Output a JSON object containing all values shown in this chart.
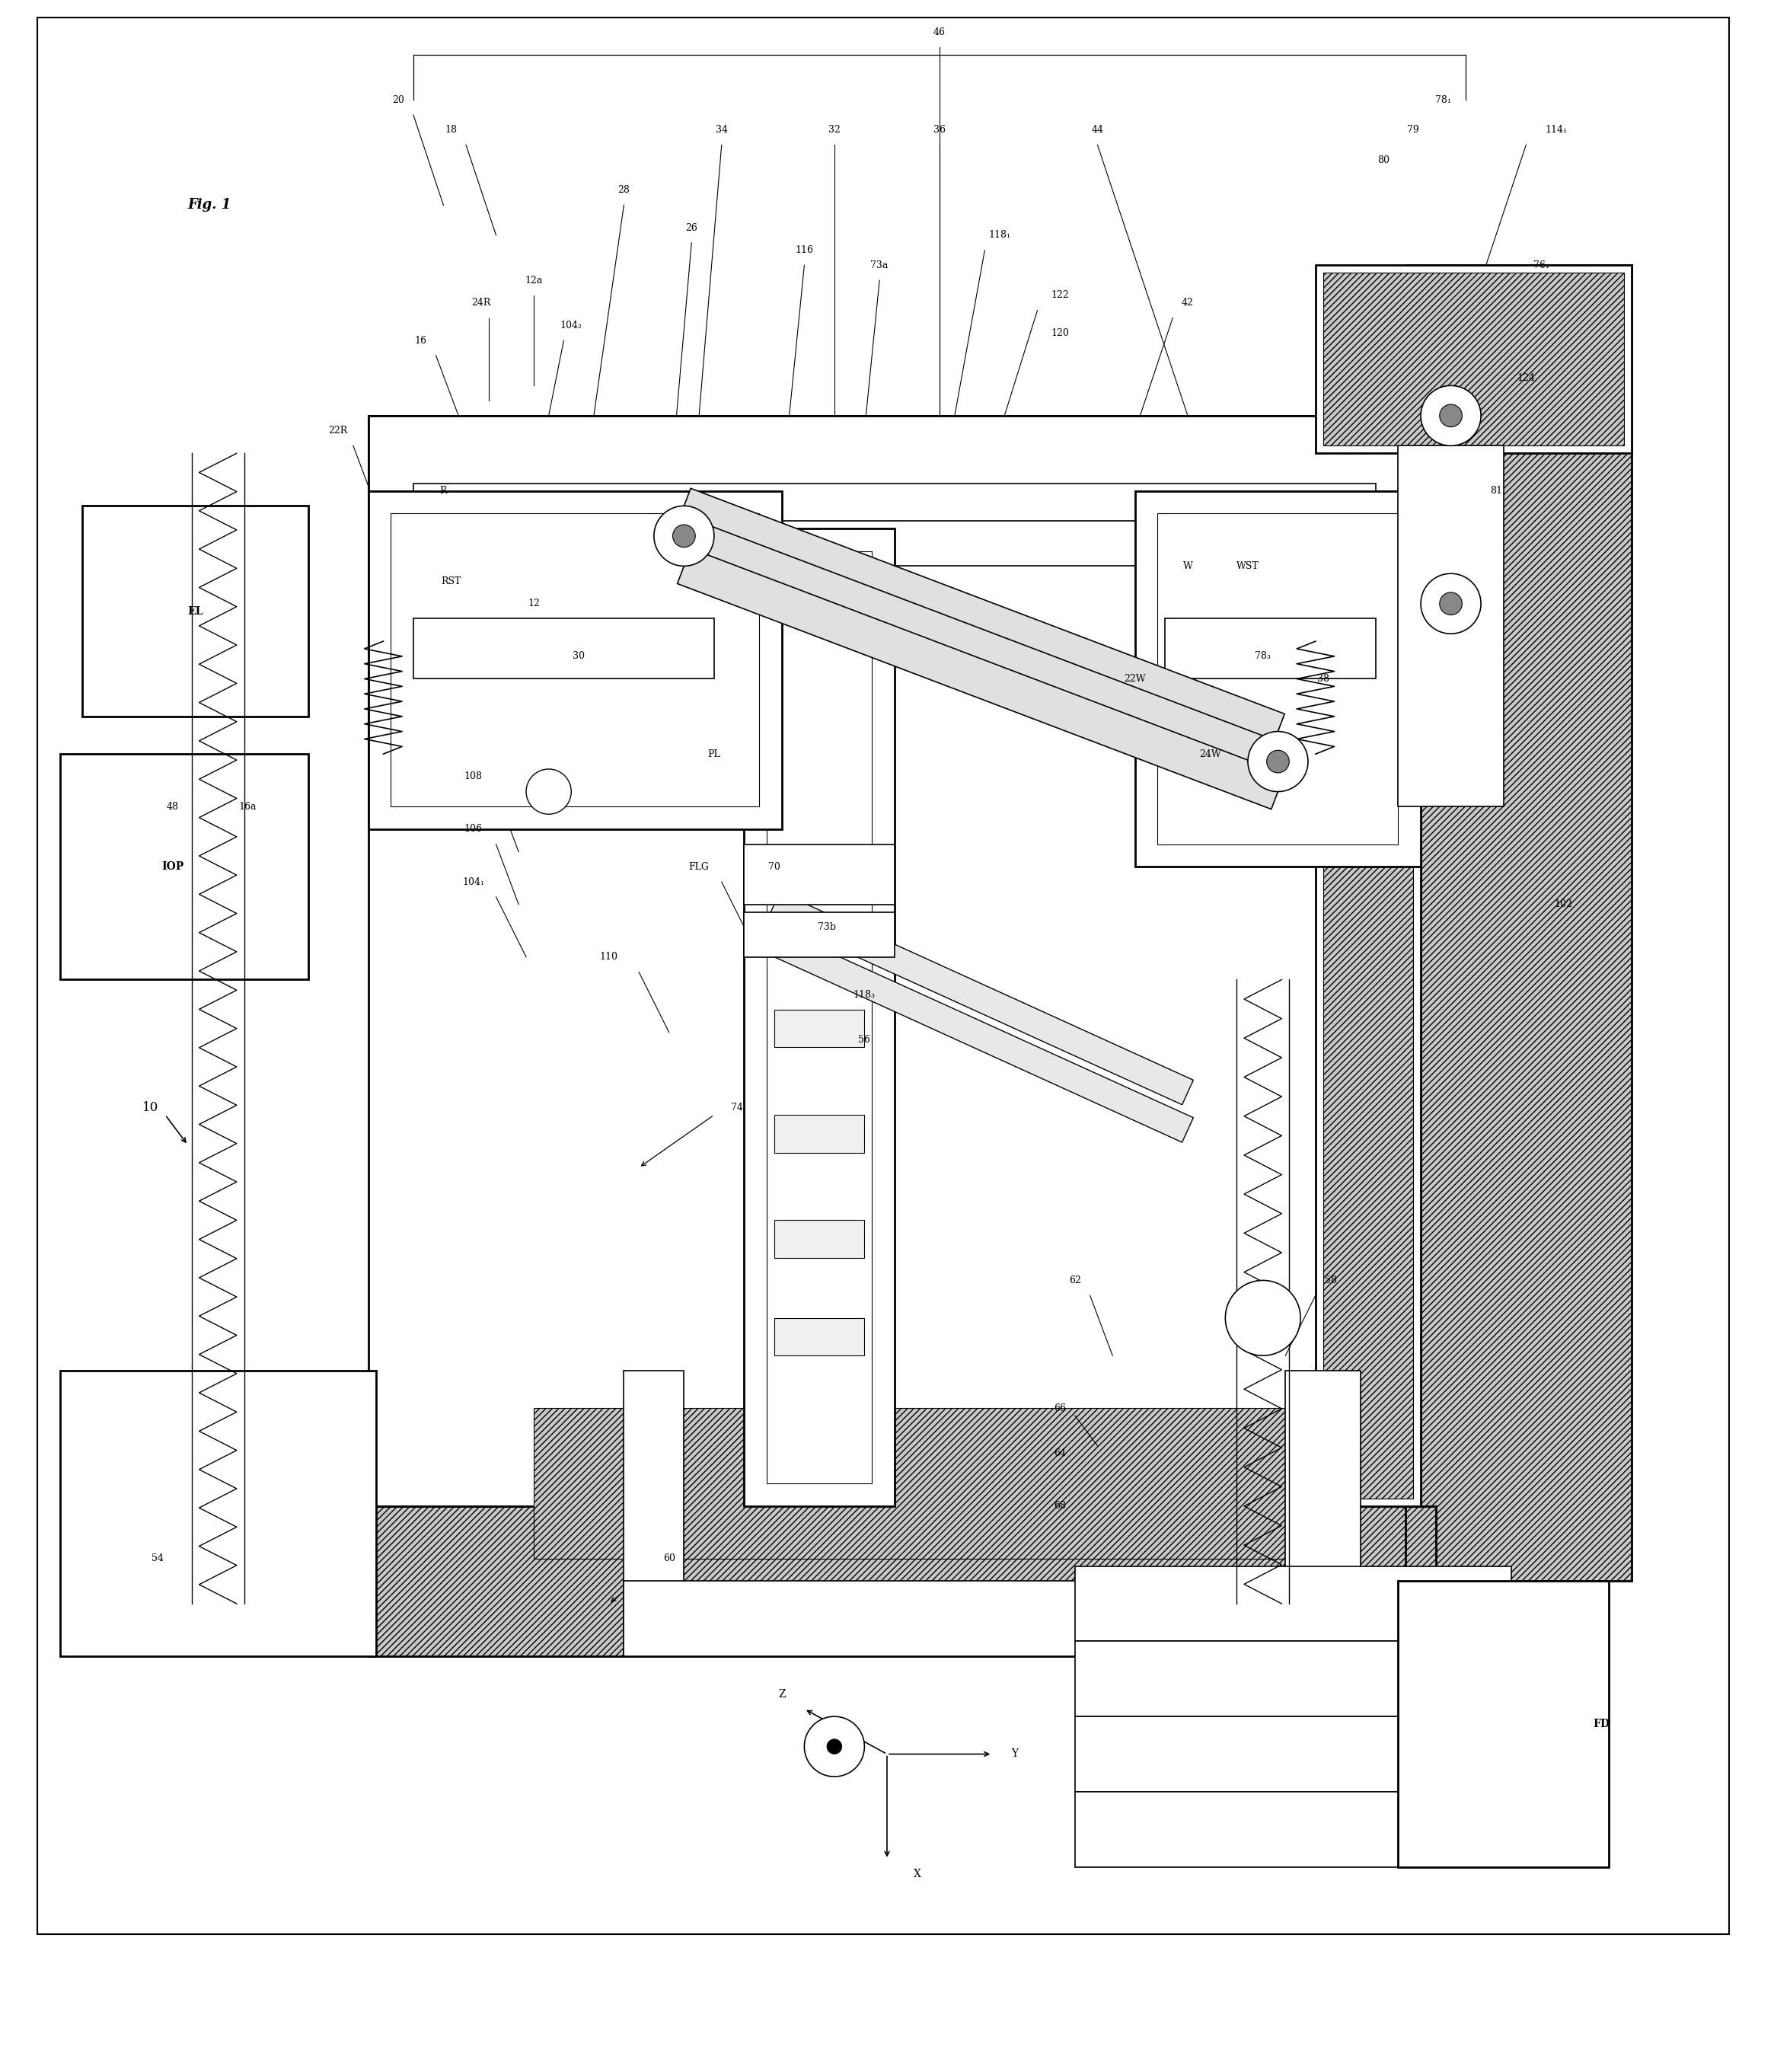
{
  "title": "Fig. 1",
  "bg_color": "#ffffff",
  "line_color": "#000000",
  "fig_width": 23.3,
  "fig_height": 27.21,
  "labels": {
    "fig_label": "Fig. 1",
    "EL": "EL",
    "IOP": "IOP",
    "label_10": "10",
    "label_18": "18",
    "label_20": "20",
    "label_22R": "22R",
    "label_24R": "24R",
    "label_12a": "12a",
    "label_12": "12",
    "label_16": "16",
    "label_16a": "16a",
    "label_R": "R",
    "label_RST": "RST",
    "label_28": "28",
    "label_26": "26",
    "label_34": "34",
    "label_32": "32",
    "label_36": "36",
    "label_44": "44",
    "label_46": "46",
    "label_30": "30",
    "label_48": "48",
    "label_54": "54",
    "label_60": "60",
    "label_74": "74",
    "label_110": "110",
    "label_104_1": "104₁",
    "label_104_2": "104₂",
    "label_106": "106",
    "label_108": "108",
    "label_PL": "PL",
    "label_FLG": "FLG",
    "label_70": "70",
    "label_73a": "73a",
    "label_73b": "73b",
    "label_116": "116",
    "label_118_1": "118₁",
    "label_118_3": "118₃",
    "label_120": "120",
    "label_122": "122",
    "label_42": "42",
    "label_56": "56",
    "label_62": "62",
    "label_64": "64",
    "label_66": "66",
    "label_68": "68",
    "label_58": "58",
    "label_W": "W",
    "label_WST": "WST",
    "label_22W": "22W",
    "label_24W": "24W",
    "label_78_1": "78₁",
    "label_78_3": "78₃",
    "label_79": "79",
    "label_80": "80",
    "label_81": "81",
    "label_38": "38",
    "label_76_1": "76₁",
    "label_114_1": "114₁",
    "label_124": "124",
    "label_102": "102",
    "label_FD": "FD",
    "axis_Z": "Z",
    "axis_Y": "Y",
    "axis_X": "X"
  }
}
